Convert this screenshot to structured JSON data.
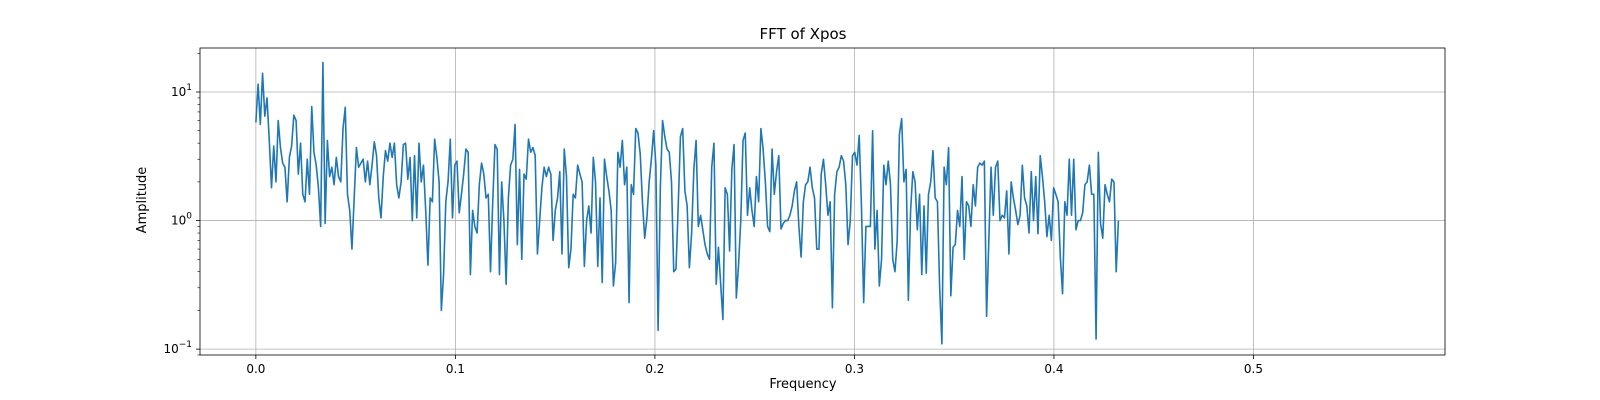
{
  "chart_data": {
    "type": "line",
    "title": "FFT of Xpos",
    "xlabel": "Frequency",
    "ylabel": "Amplitude",
    "yscale": "log",
    "grid": true,
    "xlim": [
      -0.028,
      0.596
    ],
    "ylim": [
      0.09,
      22
    ],
    "xticks": [
      0.0,
      0.1,
      0.2,
      0.3,
      0.4,
      0.5
    ],
    "xtick_labels": [
      "0.0",
      "0.1",
      "0.2",
      "0.3",
      "0.4",
      "0.5"
    ],
    "yticks": [
      0.1,
      1,
      10
    ],
    "ytick_base": "10",
    "ytick_exponents": [
      "−1",
      "0",
      "1"
    ],
    "line_color": "#1f77b4",
    "series": [
      {
        "x_start": 0.0,
        "x_step": 0.00112,
        "values": [
          5.8,
          11.5,
          5.6,
          14.0,
          6.5,
          9.0,
          4.2,
          1.8,
          3.8,
          2.0,
          6.0,
          3.7,
          2.8,
          2.6,
          1.4,
          3.1,
          3.8,
          6.6,
          6.0,
          2.3,
          4.0,
          1.6,
          1.4,
          3.0,
          1.6,
          7.7,
          3.4,
          2.7,
          1.8,
          0.9,
          17.0,
          0.95,
          4.2,
          2.2,
          2.6,
          1.9,
          3.1,
          2.2,
          2.0,
          5.2,
          7.6,
          1.6,
          1.2,
          0.6,
          1.5,
          3.7,
          2.6,
          2.8,
          3.0,
          2.0,
          2.9,
          1.9,
          2.7,
          4.1,
          3.2,
          1.5,
          1.05,
          2.2,
          3.5,
          2.9,
          4.0,
          3.1,
          4.0,
          1.9,
          1.5,
          2.0,
          3.9,
          4.0,
          2.1,
          3.1,
          1.0,
          3.2,
          1.05,
          4.0,
          2.0,
          2.7,
          1.2,
          0.45,
          1.5,
          1.4,
          4.3,
          3.1,
          2.0,
          0.2,
          0.38,
          1.4,
          2.0,
          4.3,
          1.05,
          2.7,
          2.9,
          1.15,
          1.6,
          2.3,
          3.6,
          3.4,
          0.38,
          1.2,
          0.9,
          0.8,
          1.9,
          2.8,
          2.3,
          1.5,
          1.6,
          0.4,
          1.4,
          3.9,
          3.6,
          0.38,
          2.0,
          1.0,
          0.32,
          1.5,
          2.7,
          3.0,
          5.6,
          0.65,
          2.5,
          0.5,
          2.3,
          2.1,
          4.3,
          3.4,
          3.7,
          3.2,
          0.55,
          1.0,
          1.8,
          2.6,
          2.2,
          2.6,
          2.3,
          0.7,
          1.2,
          1.5,
          2.4,
          0.55,
          3.6,
          2.2,
          0.43,
          0.6,
          1.6,
          1.5,
          2.7,
          2.3,
          2.0,
          0.44,
          1.0,
          1.3,
          0.8,
          3.1,
          2.0,
          0.44,
          1.5,
          0.33,
          3.0,
          2.2,
          1.7,
          1.2,
          0.31,
          0.47,
          3.4,
          2.6,
          4.2,
          1.9,
          2.6,
          0.23,
          1.9,
          1.6,
          5.2,
          4.8,
          3.3,
          1.4,
          0.73,
          1.05,
          2.0,
          3.0,
          5.0,
          2.7,
          0.14,
          1.8,
          6.0,
          4.5,
          3.6,
          3.4,
          2.0,
          0.4,
          0.42,
          1.3,
          4.5,
          5.2,
          1.7,
          1.3,
          0.43,
          0.8,
          2.5,
          4.2,
          0.9,
          1.1,
          0.85,
          0.65,
          0.55,
          0.5,
          2.6,
          4.0,
          0.32,
          0.62,
          0.32,
          0.17,
          1.8,
          1.6,
          0.58,
          2.5,
          3.9,
          0.25,
          0.45,
          1.0,
          4.2,
          4.8,
          1.1,
          1.8,
          1.2,
          0.9,
          2.2,
          1.4,
          5.2,
          3.6,
          2.0,
          0.9,
          0.82,
          3.6,
          1.6,
          2.4,
          3.2,
          0.86,
          0.95,
          1.0,
          1.0,
          1.1,
          1.3,
          1.7,
          2.0,
          0.9,
          0.52,
          1.4,
          1.9,
          2.0,
          2.6,
          1.8,
          1.5,
          0.6,
          0.6,
          2.3,
          3.0,
          1.9,
          1.1,
          1.4,
          0.21,
          1.6,
          2.4,
          2.6,
          3.2,
          2.9,
          1.9,
          0.65,
          1.0,
          3.2,
          3.4,
          2.7,
          4.6,
          1.3,
          0.23,
          0.9,
          0.9,
          0.9,
          5.0,
          0.6,
          1.2,
          0.31,
          0.5,
          2.7,
          1.9,
          2.9,
          1.9,
          0.5,
          0.4,
          0.7,
          4.7,
          6.2,
          2.0,
          2.5,
          0.24,
          1.2,
          2.4,
          2.0,
          0.85,
          1.6,
          0.38,
          1.3,
          0.39,
          1.6,
          2.0,
          3.5,
          1.5,
          1.4,
          0.3,
          0.11,
          2.6,
          1.9,
          3.7,
          0.26,
          0.62,
          0.65,
          1.2,
          0.9,
          2.2,
          0.5,
          1.4,
          1.3,
          0.9,
          1.9,
          1.3,
          2.6,
          2.8,
          2.7,
          2.9,
          0.18,
          0.7,
          2.6,
          1.1,
          2.6,
          2.9,
          1.0,
          1.1,
          1.05,
          1.7,
          0.55,
          2.0,
          1.5,
          1.2,
          0.93,
          1.1,
          2.7,
          1.5,
          1.3,
          0.8,
          2.4,
          1.0,
          2.2,
          0.79,
          3.2,
          2.2,
          1.4,
          0.75,
          1.1,
          0.7,
          1.8,
          1.6,
          1.4,
          0.52,
          0.27,
          1.4,
          1.1,
          3.0,
          1.1,
          3.0,
          0.85,
          1.0,
          1.0,
          1.15,
          1.9,
          2.0,
          2.7,
          1.6,
          1.6,
          0.12,
          3.4,
          0.95,
          0.73,
          1.9,
          1.6,
          1.4,
          2.1,
          2.0,
          0.4,
          1.0
        ]
      }
    ]
  }
}
